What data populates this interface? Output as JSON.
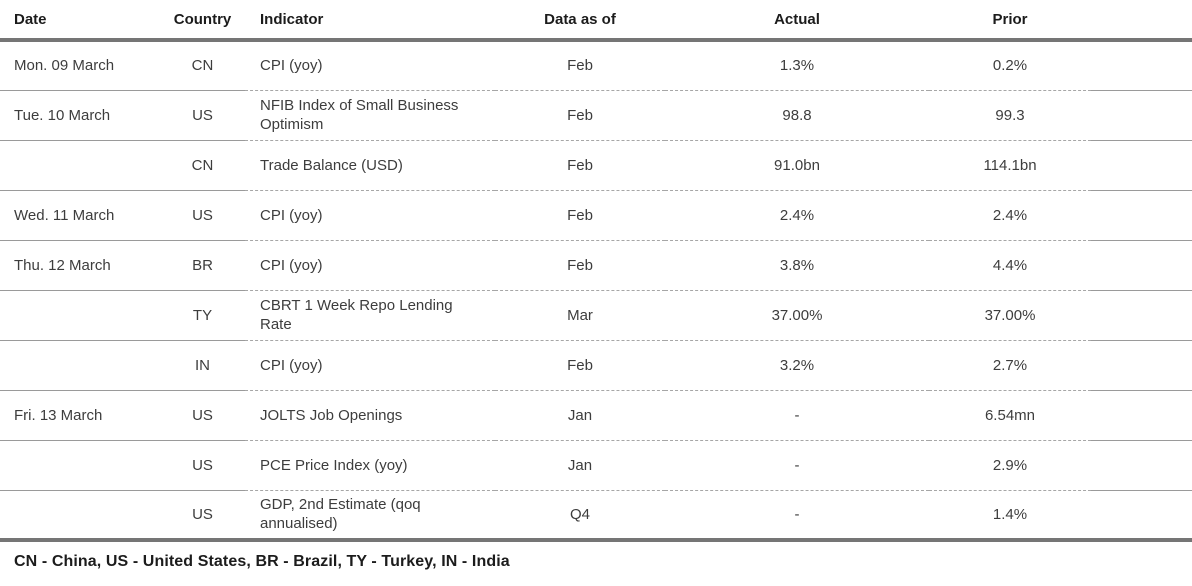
{
  "table": {
    "columns": [
      "Date",
      "Country",
      "Indicator",
      "Data as of",
      "Actual",
      "Prior"
    ],
    "rows": [
      {
        "date": "Mon. 09 March",
        "country": "CN",
        "indicator": "CPI (yoy)",
        "data_as_of": "Feb",
        "actual": "1.3%",
        "prior": "0.2%"
      },
      {
        "date": "Tue. 10 March",
        "country": "US",
        "indicator": "NFIB Index of Small Business Optimism",
        "data_as_of": "Feb",
        "actual": "98.8",
        "prior": "99.3"
      },
      {
        "date": "",
        "country": "CN",
        "indicator": "Trade Balance (USD)",
        "data_as_of": "Feb",
        "actual": "91.0bn",
        "prior": "114.1bn"
      },
      {
        "date": "Wed. 11 March",
        "country": "US",
        "indicator": "CPI (yoy)",
        "data_as_of": "Feb",
        "actual": "2.4%",
        "prior": "2.4%"
      },
      {
        "date": "Thu. 12 March",
        "country": "BR",
        "indicator": "CPI (yoy)",
        "data_as_of": "Feb",
        "actual": "3.8%",
        "prior": "4.4%"
      },
      {
        "date": "",
        "country": "TY",
        "indicator": "CBRT 1 Week Repo Lending Rate",
        "data_as_of": "Mar",
        "actual": "37.00%",
        "prior": "37.00%"
      },
      {
        "date": "",
        "country": "IN",
        "indicator": "CPI (yoy)",
        "data_as_of": "Feb",
        "actual": "3.2%",
        "prior": "2.7%"
      },
      {
        "date": "Fri. 13 March",
        "country": "US",
        "indicator": "JOLTS Job Openings",
        "data_as_of": "Jan",
        "actual": "-",
        "prior": "6.54mn"
      },
      {
        "date": "",
        "country": "US",
        "indicator": "PCE Price Index (yoy)",
        "data_as_of": "Jan",
        "actual": "-",
        "prior": "2.9%"
      },
      {
        "date": "",
        "country": "US",
        "indicator": "GDP, 2nd Estimate (qoq annualised)",
        "data_as_of": "Q4",
        "actual": "-",
        "prior": "1.4%"
      }
    ],
    "footnote": "CN - China, US - United States, BR - Brazil, TY - Turkey, IN - India"
  },
  "colors": {
    "text_header": "#1c1c1c",
    "text_body": "#3d3d3d",
    "line_thick": "#757575",
    "line_solid": "#9a9a9a",
    "line_dashed": "#a6a6a6",
    "bg": "#ffffff"
  }
}
